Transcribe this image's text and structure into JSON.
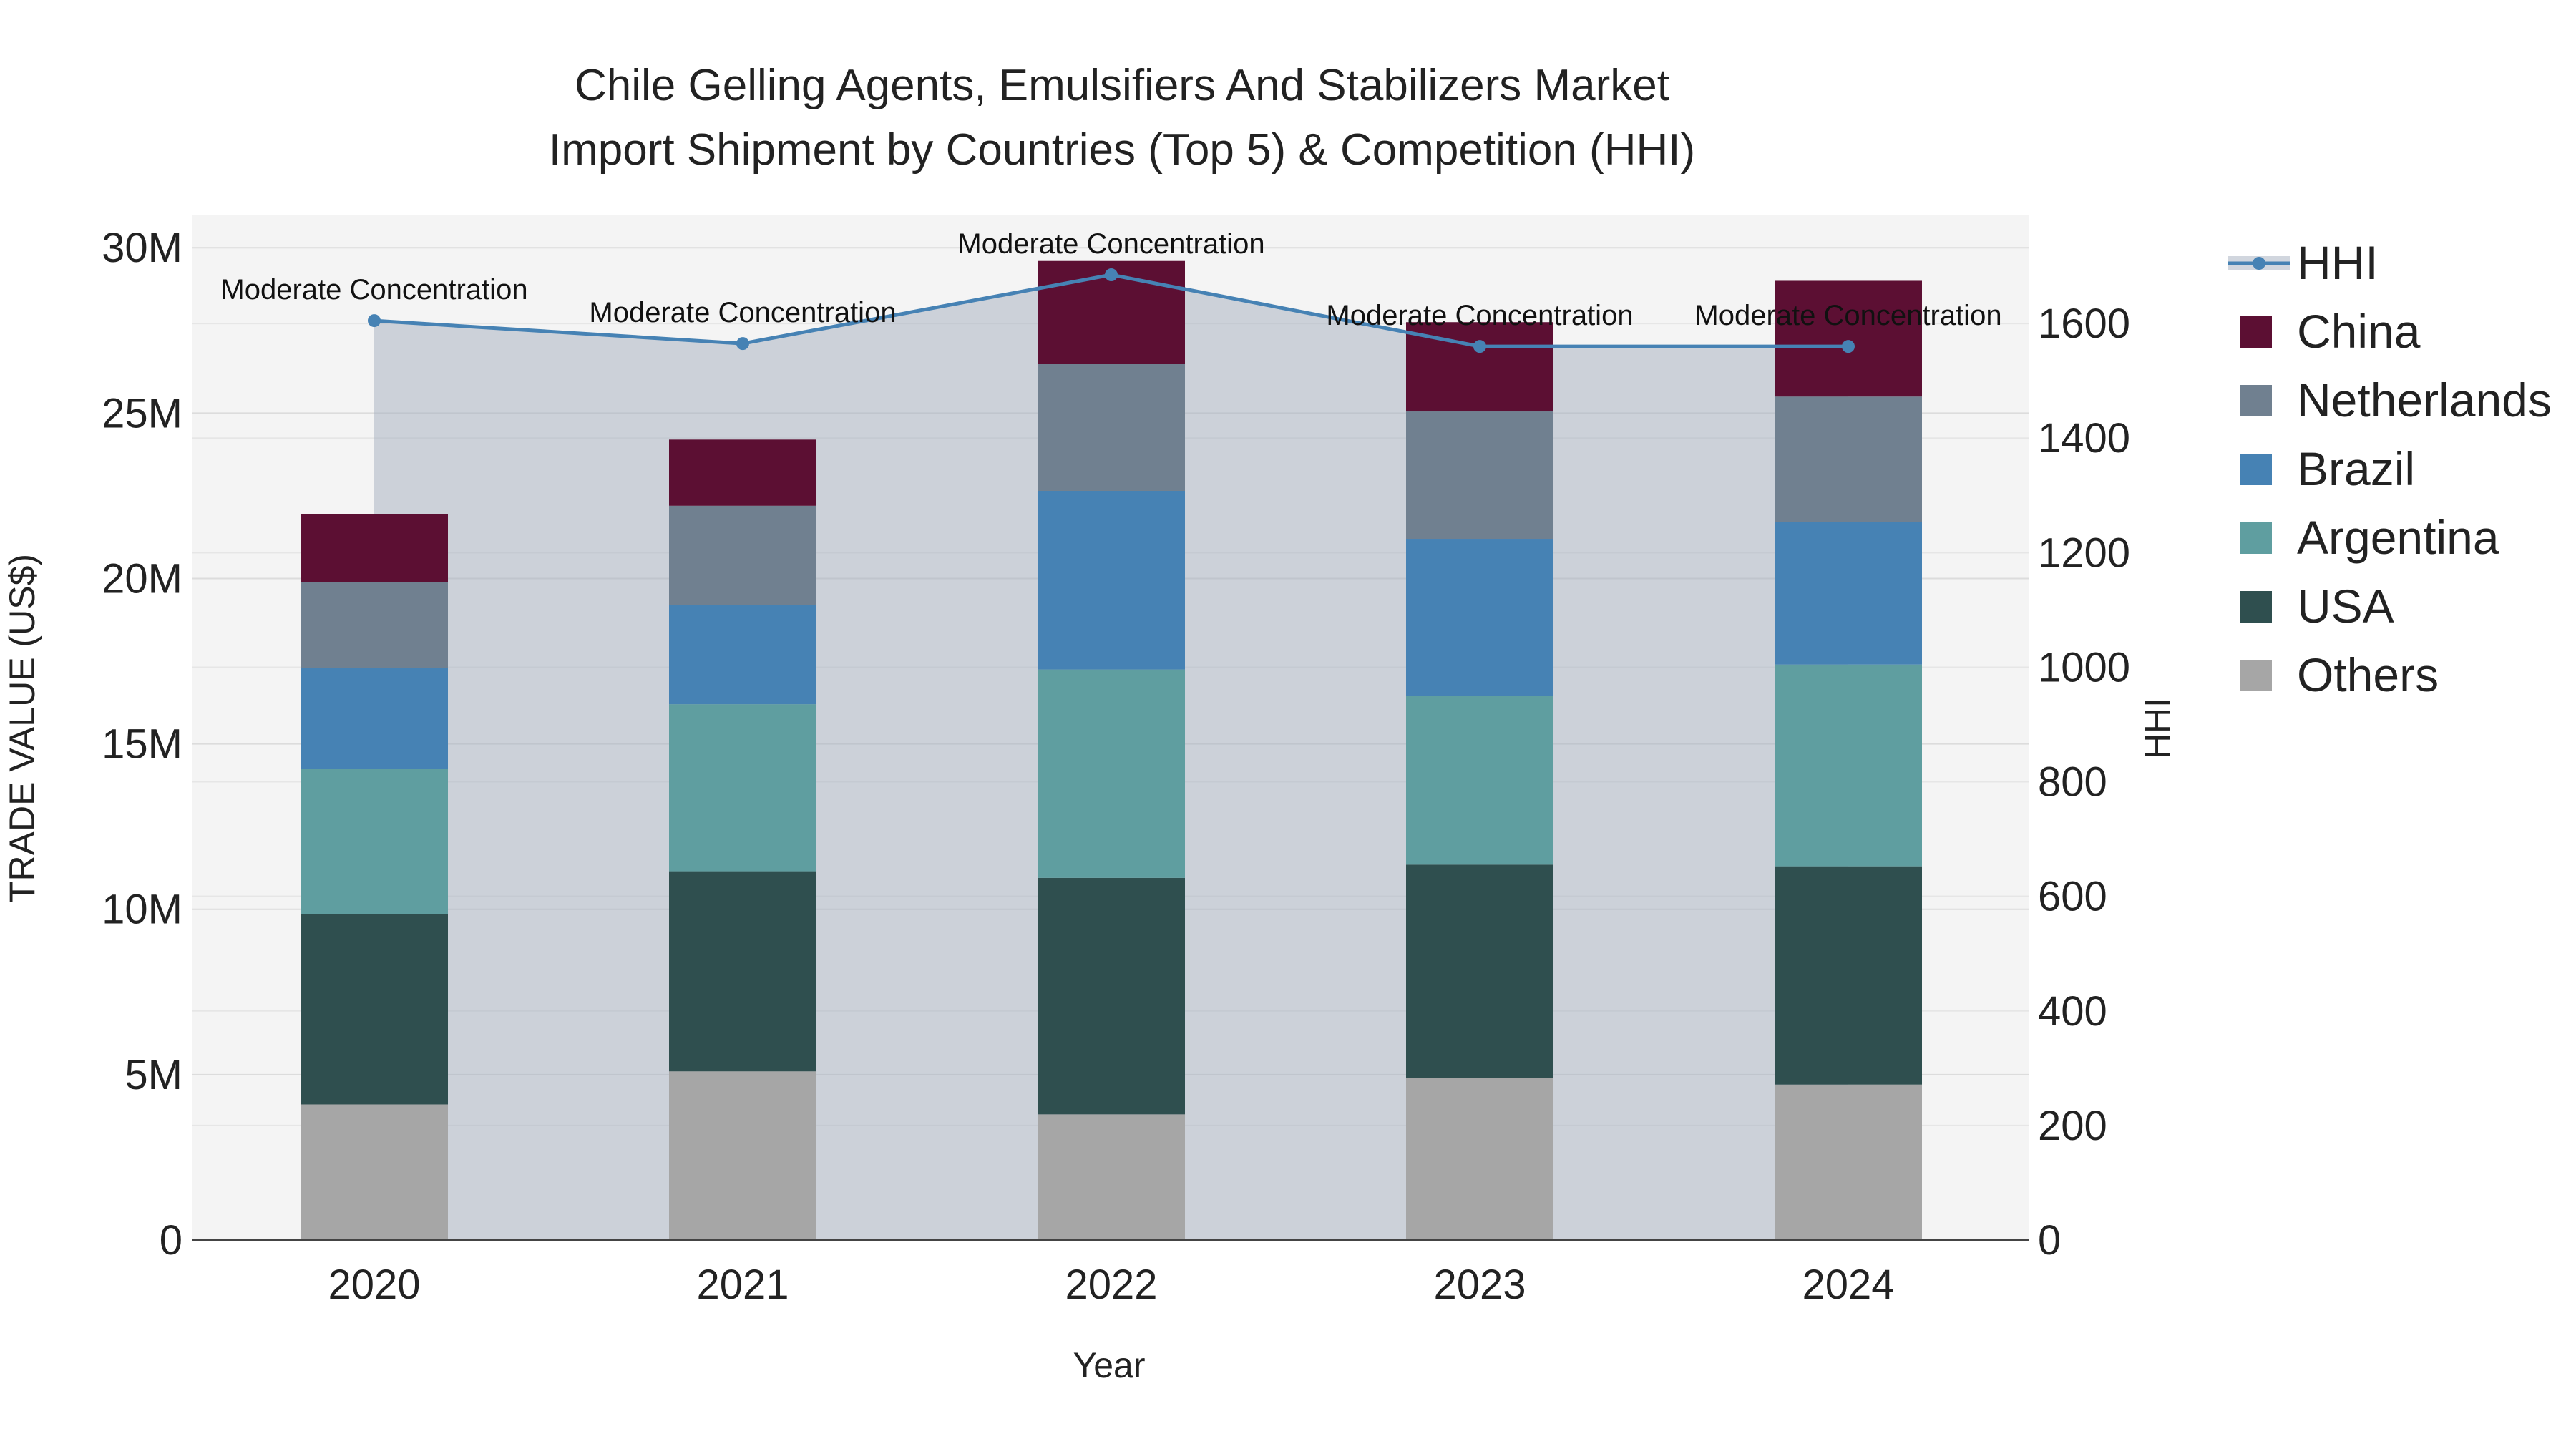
{
  "chart_data": {
    "type": "bar",
    "stacked": true,
    "title_lines": [
      "Chile Gelling Agents, Emulsifiers And Stabilizers Market",
      "Import Shipment by Countries (Top 5) & Competition (HHI)"
    ],
    "xlabel": "Year",
    "ylabel": "TRADE VALUE (US$)",
    "y2label": "HHI",
    "categories": [
      "2020",
      "2021",
      "2022",
      "2023",
      "2024"
    ],
    "ylim": [
      0,
      31000000
    ],
    "y2lim": [
      0,
      1790
    ],
    "y_ticks": [
      0,
      5000000,
      10000000,
      15000000,
      20000000,
      25000000,
      30000000
    ],
    "y_tick_labels": [
      "0",
      "5M",
      "10M",
      "15M",
      "20M",
      "25M",
      "30M"
    ],
    "y2_ticks": [
      0,
      200,
      400,
      600,
      800,
      1000,
      1200,
      1400,
      1600
    ],
    "y2_tick_labels": [
      "0",
      "200",
      "400",
      "600",
      "800",
      "1000",
      "1200",
      "1400",
      "1600"
    ],
    "series": [
      {
        "name": "Others",
        "color": "#a6a6a6",
        "values": [
          4100000,
          5100000,
          3800000,
          4900000,
          4700000
        ]
      },
      {
        "name": "USA",
        "color": "#2f4f4f",
        "values": [
          5750000,
          6050000,
          7150000,
          6450000,
          6600000
        ]
      },
      {
        "name": "Argentina",
        "color": "#5f9ea0",
        "values": [
          4400000,
          5050000,
          6300000,
          5100000,
          6100000
        ]
      },
      {
        "name": "Brazil",
        "color": "#4682b4",
        "values": [
          3050000,
          3000000,
          5400000,
          4750000,
          4300000
        ]
      },
      {
        "name": "Netherlands",
        "color": "#708090",
        "values": [
          2600000,
          3000000,
          3850000,
          3850000,
          3800000
        ]
      },
      {
        "name": "China",
        "color": "#5c0f33",
        "values": [
          2050000,
          2000000,
          3100000,
          2700000,
          3500000
        ]
      }
    ],
    "hhi": {
      "name": "HHI",
      "color": "#4682b4",
      "values": [
        1605,
        1565,
        1685,
        1560,
        1560
      ],
      "annotations": [
        "Moderate Concentration",
        "Moderate Concentration",
        "Moderate Concentration",
        "Moderate Concentration",
        "Moderate Concentration"
      ]
    },
    "legend": [
      "HHI",
      "China",
      "Netherlands",
      "Brazil",
      "Argentina",
      "USA",
      "Others"
    ],
    "legend_position": "right",
    "grid": true
  }
}
